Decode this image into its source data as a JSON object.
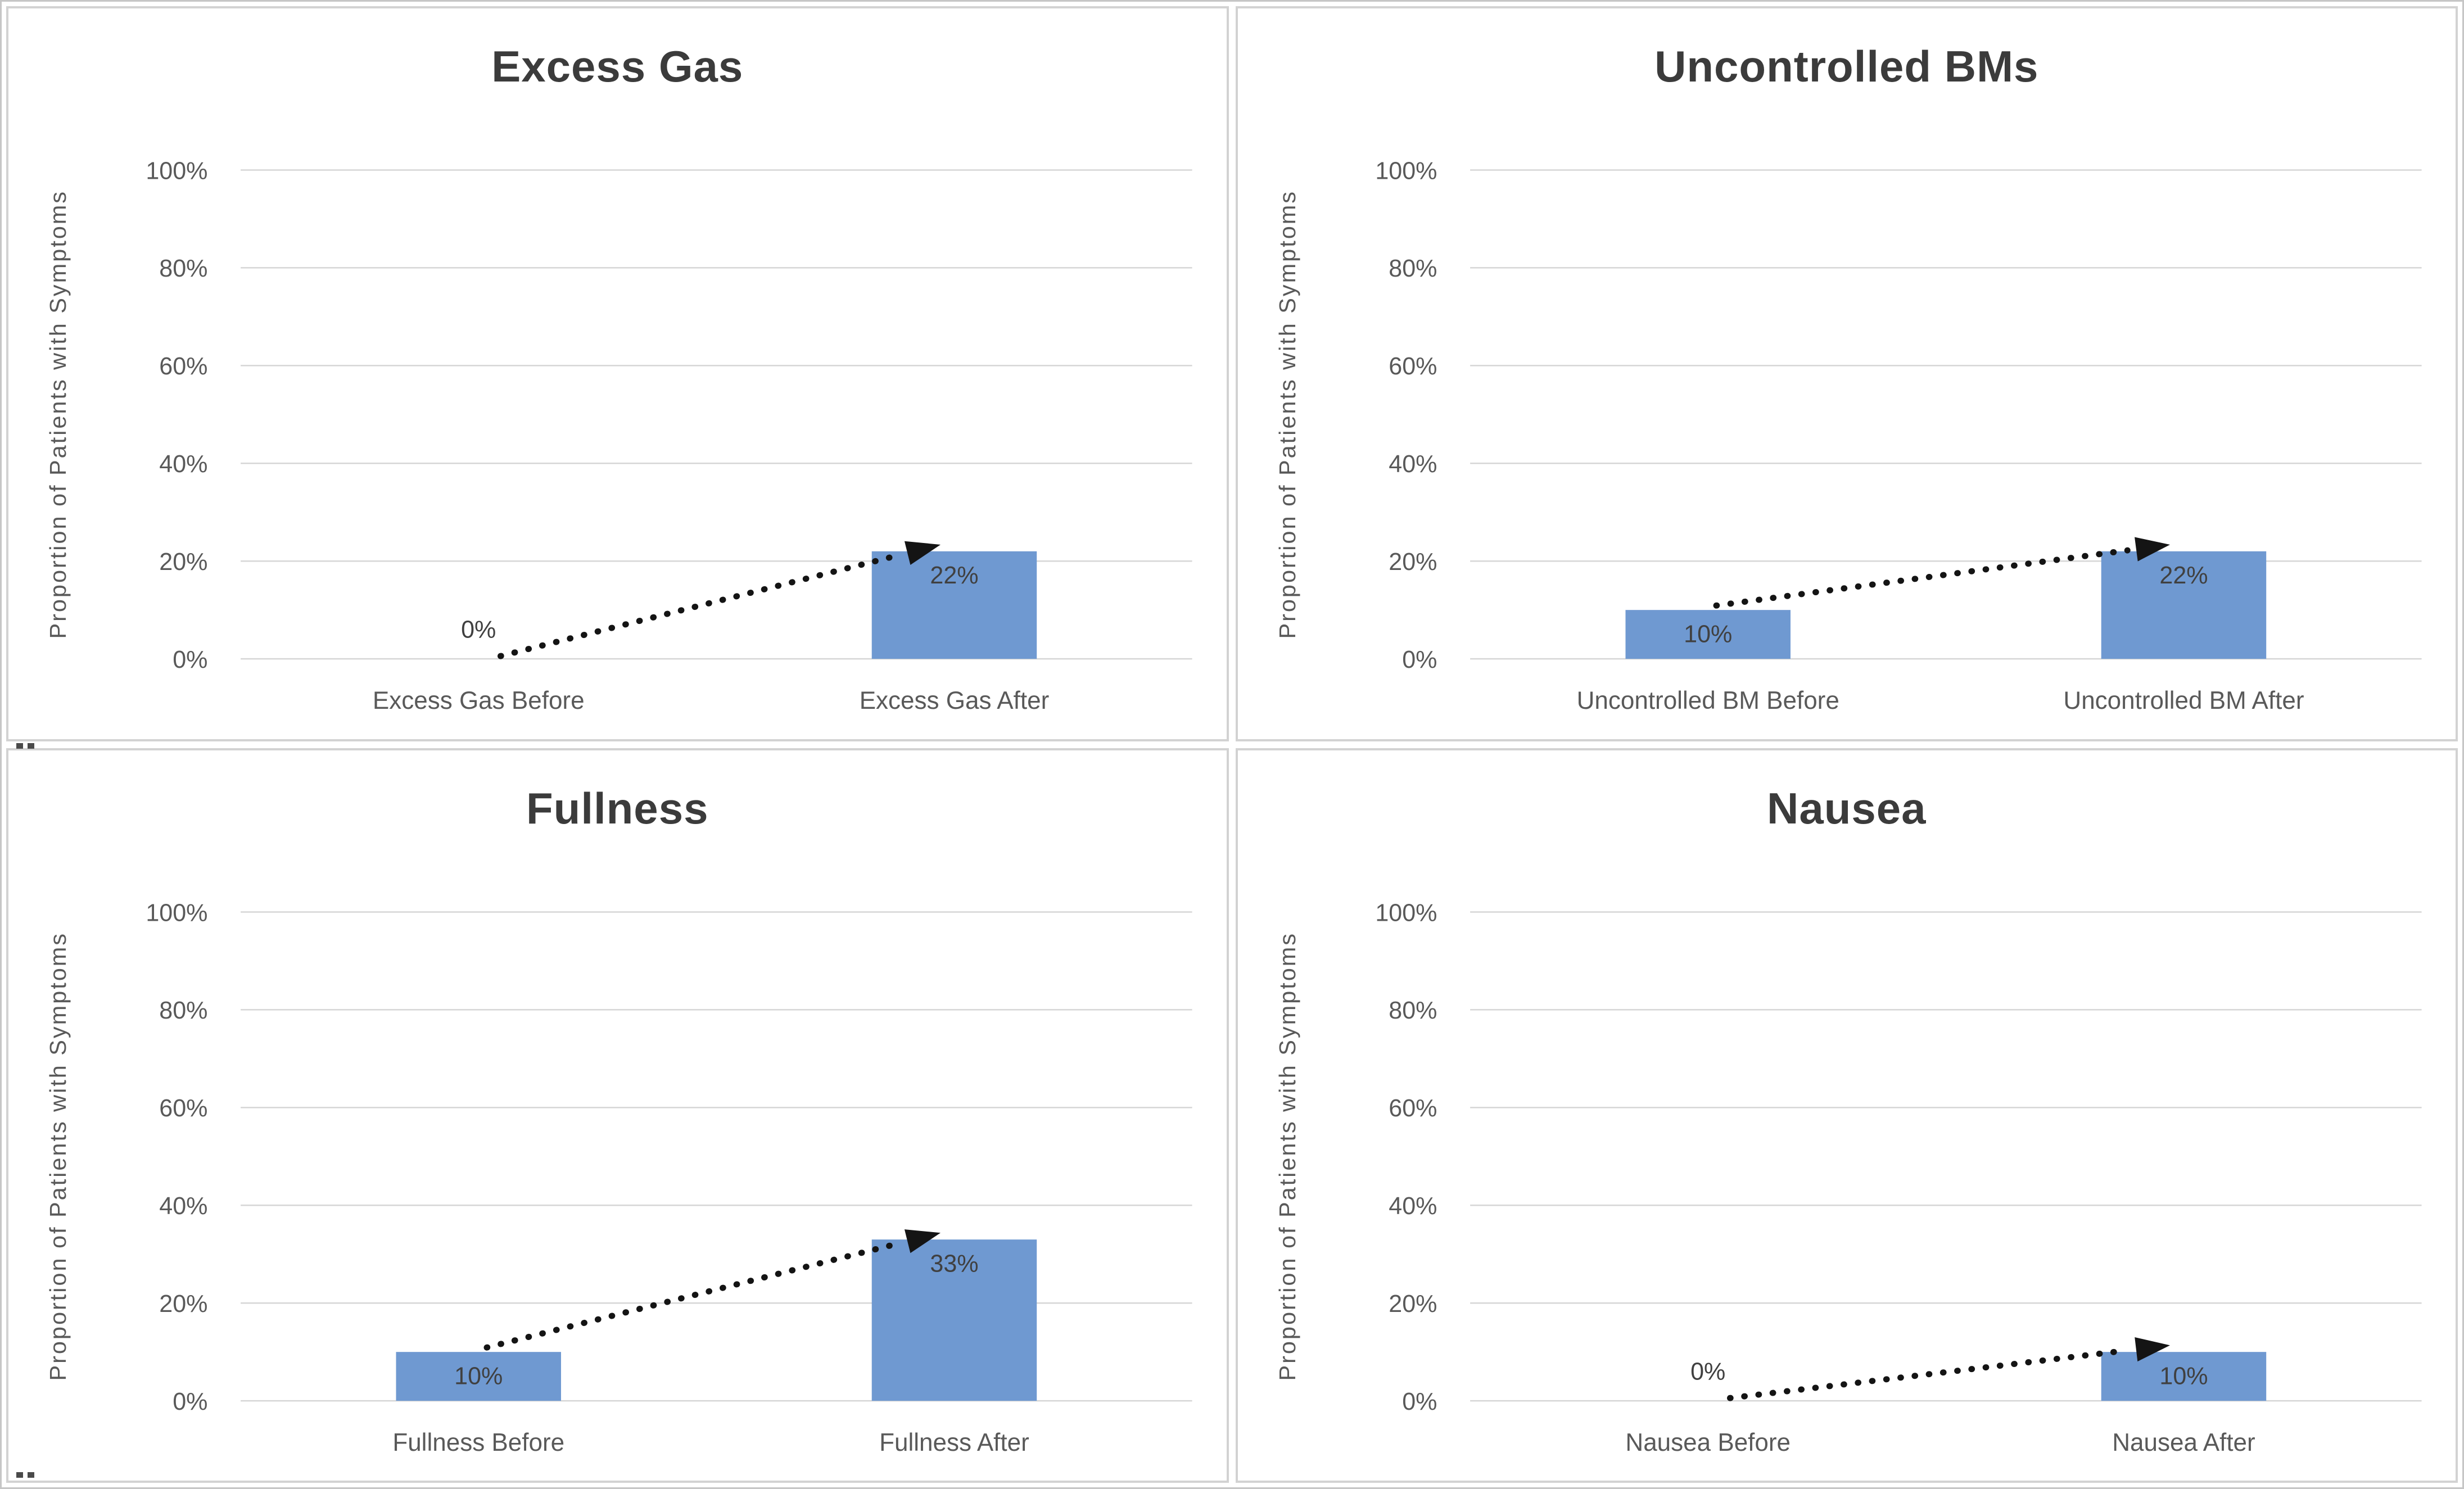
{
  "colors": {
    "bar_fill": "#6F99D1",
    "gridline": "#d6d6d6",
    "axis_line": "#c9c9c9",
    "chart_title": "#3b3b3b",
    "tick_text": "#595959",
    "category_text": "#595959",
    "axis_title_text": "#595959",
    "data_label": "#404040",
    "arrow": "#141414",
    "panel_border": "#d2d2d2"
  },
  "y_axis_shared": {
    "title": "Proportion of Patients with Symptoms",
    "tick_labels": [
      "0%",
      "20%",
      "40%",
      "60%",
      "80%",
      "100%"
    ],
    "tick_values": [
      0,
      20,
      40,
      60,
      80,
      100
    ]
  },
  "chart_data": [
    {
      "type": "bar",
      "title": "Excess Gas",
      "ylabel": "Proportion of Patients with Symptoms",
      "ylim": [
        0,
        100
      ],
      "ytick_labels": [
        "0%",
        "20%",
        "40%",
        "60%",
        "80%",
        "100%"
      ],
      "ytick_values": [
        0,
        20,
        40,
        60,
        80,
        100
      ],
      "grid": true,
      "legend": false,
      "categories": [
        "Excess Gas Before",
        "Excess Gas After"
      ],
      "values": [
        0,
        22
      ],
      "value_labels": [
        "0%",
        "22%"
      ],
      "annotation": {
        "type": "dotted-arrow",
        "from_category": 0,
        "to_category": 1
      }
    },
    {
      "type": "bar",
      "title": "Uncontrolled BMs",
      "ylabel": "Proportion of Patients with Symptoms",
      "ylim": [
        0,
        100
      ],
      "ytick_labels": [
        "0%",
        "20%",
        "40%",
        "60%",
        "80%",
        "100%"
      ],
      "ytick_values": [
        0,
        20,
        40,
        60,
        80,
        100
      ],
      "grid": true,
      "legend": false,
      "categories": [
        "Uncontrolled BM Before",
        "Uncontrolled BM After"
      ],
      "values": [
        10,
        22
      ],
      "value_labels": [
        "10%",
        "22%"
      ],
      "annotation": {
        "type": "dotted-arrow",
        "from_category": 0,
        "to_category": 1
      }
    },
    {
      "type": "bar",
      "title": "Fullness",
      "ylabel": "Proportion of Patients with Symptoms",
      "ylim": [
        0,
        100
      ],
      "ytick_labels": [
        "0%",
        "20%",
        "40%",
        "60%",
        "80%",
        "100%"
      ],
      "ytick_values": [
        0,
        20,
        40,
        60,
        80,
        100
      ],
      "grid": true,
      "legend": false,
      "categories": [
        "Fullness Before",
        "Fullness After"
      ],
      "values": [
        10,
        33
      ],
      "value_labels": [
        "10%",
        "33%"
      ],
      "annotation": {
        "type": "dotted-arrow",
        "from_category": 0,
        "to_category": 1
      }
    },
    {
      "type": "bar",
      "title": "Nausea",
      "ylabel": "Proportion of Patients with Symptoms",
      "ylim": [
        0,
        100
      ],
      "ytick_labels": [
        "0%",
        "20%",
        "40%",
        "60%",
        "80%",
        "100%"
      ],
      "ytick_values": [
        0,
        20,
        40,
        60,
        80,
        100
      ],
      "grid": true,
      "legend": false,
      "categories": [
        "Nausea Before",
        "Nausea After"
      ],
      "values": [
        0,
        10
      ],
      "value_labels": [
        "0%",
        "10%"
      ],
      "annotation": {
        "type": "dotted-arrow",
        "from_category": 0,
        "to_category": 1
      }
    }
  ]
}
